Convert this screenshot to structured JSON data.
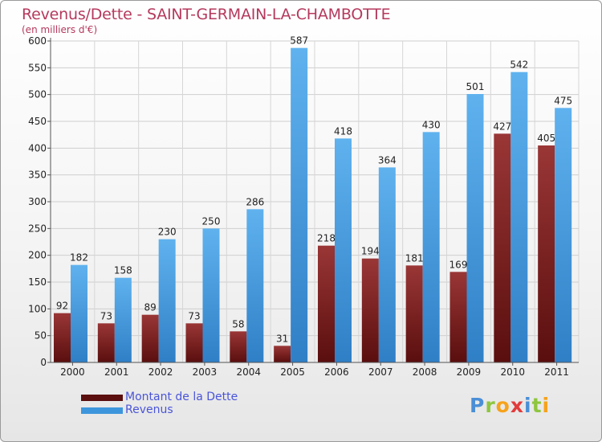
{
  "title": "Revenus/Dette - SAINT-GERMAIN-LA-CHAMBOTTE",
  "subtitle": "(en milliers d'€)",
  "brand": {
    "letters": [
      "P",
      "r",
      "o",
      "x",
      "i",
      "t",
      "i"
    ],
    "colors": [
      "#4a8fd6",
      "#8ec63f",
      "#f7a21b",
      "#e23b3b",
      "#4a8fd6",
      "#8ec63f",
      "#f7a21b"
    ]
  },
  "colors": {
    "dette": "#7a1c1c",
    "revenus": "#3d96dc",
    "title": "#b5395d",
    "legend_text": "#4a55d8"
  },
  "chart_data": {
    "type": "bar",
    "title": "Revenus/Dette - SAINT-GERMAIN-LA-CHAMBOTTE",
    "subtitle": "(en milliers d'€)",
    "categories": [
      "2000",
      "2001",
      "2002",
      "2003",
      "2004",
      "2005",
      "2006",
      "2007",
      "2008",
      "2009",
      "2010",
      "2011"
    ],
    "series": [
      {
        "name": "Montant de la Dette",
        "values": [
          92,
          73,
          89,
          73,
          58,
          31,
          218,
          194,
          181,
          169,
          427,
          405
        ]
      },
      {
        "name": "Revenus",
        "values": [
          182,
          158,
          230,
          250,
          286,
          587,
          418,
          364,
          430,
          501,
          542,
          475
        ]
      }
    ],
    "ylim": [
      0,
      600
    ],
    "yticks": [
      0,
      50,
      100,
      150,
      200,
      250,
      300,
      350,
      400,
      450,
      500,
      550,
      600
    ],
    "grid": true,
    "legend": "bottom-left"
  }
}
